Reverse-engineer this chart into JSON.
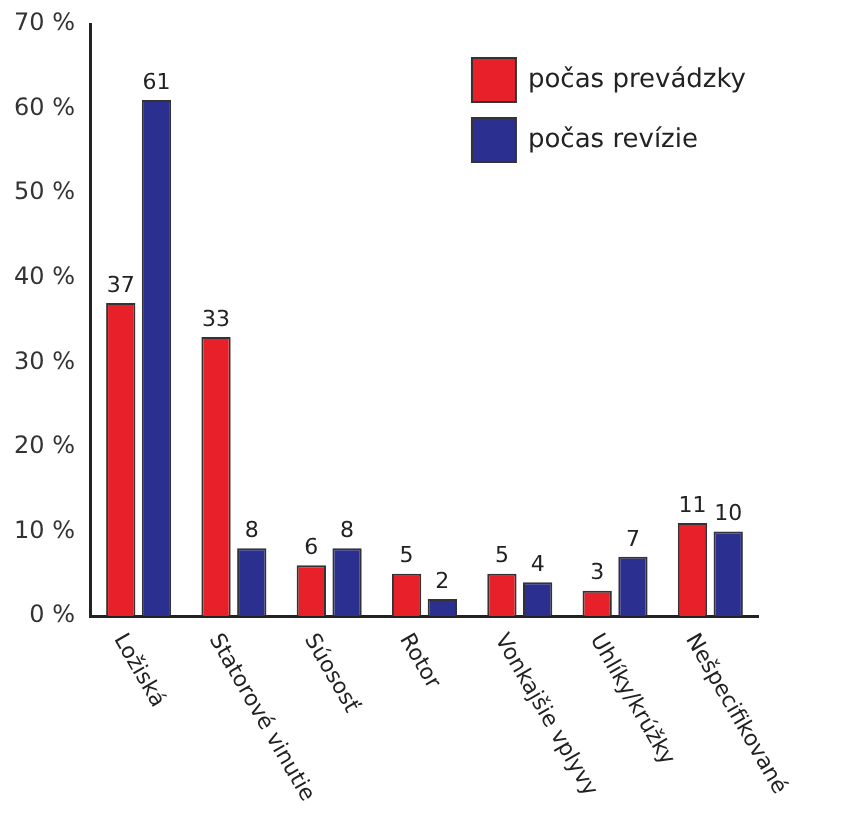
{
  "chart_data": {
    "type": "bar",
    "categories": [
      "Ložiská",
      "Statorové vinutie",
      "Súososť",
      "Rotor",
      "Vonkajšie vplyvy",
      "Uhlíky/krúžky",
      "Nešpecifikované"
    ],
    "series": [
      {
        "name": "počas prevádzky",
        "color": "#e8202a",
        "values": [
          37,
          33,
          6,
          5,
          5,
          3,
          11
        ]
      },
      {
        "name": "počas revízie",
        "color": "#2b2f8f",
        "values": [
          61,
          8,
          8,
          2,
          4,
          7,
          10
        ]
      }
    ],
    "ylim": [
      0,
      70
    ],
    "yticks": [
      {
        "value": 0,
        "label": "0 %"
      },
      {
        "value": 10,
        "label": "10 %"
      },
      {
        "value": 20,
        "label": "20 %"
      },
      {
        "value": 30,
        "label": "30 %"
      },
      {
        "value": 40,
        "label": "40 %"
      },
      {
        "value": 50,
        "label": "50 %"
      },
      {
        "value": 60,
        "label": "60 %"
      },
      {
        "value": 70,
        "label": "70 %"
      }
    ],
    "grid": false,
    "legend": "top right",
    "data_labels": true
  }
}
